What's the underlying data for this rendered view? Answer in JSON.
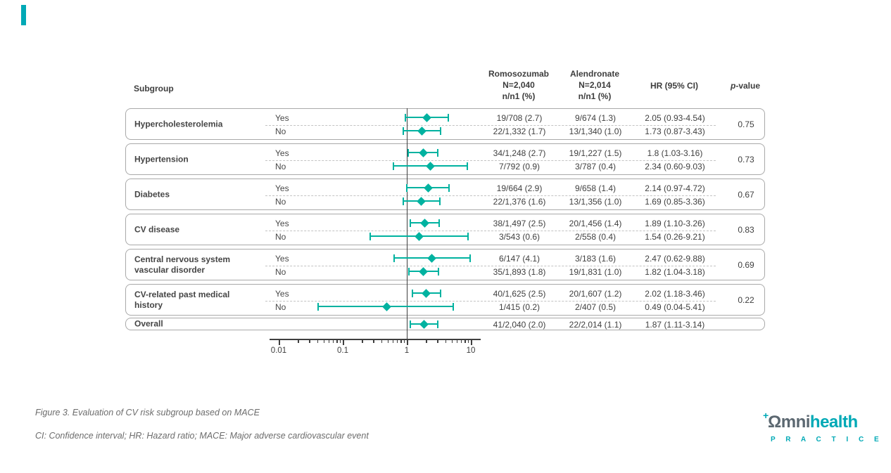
{
  "page": {
    "background": "#ffffff",
    "corner_tab_color": "#00a9b6"
  },
  "table_header": {
    "subgroup": "Subgroup",
    "romosozumab_lines": [
      "Romosozumab",
      "N=2,040",
      "n/n1 (%)"
    ],
    "alendronate_lines": [
      "Alendronate",
      "N=2,014",
      "n/n1 (%)"
    ],
    "hr": "HR (95% CI)",
    "p_italic": "p",
    "p_rest": "-value"
  },
  "chart_data": {
    "type": "scatter",
    "variant": "forest-plot",
    "x_scale": "log10",
    "x_ticks": [
      0.01,
      0.1,
      1,
      10
    ],
    "x_tick_labels": [
      "0.01",
      "0.1",
      "1",
      "10"
    ],
    "reference_line_x": 1,
    "marker_color": "#00b2a0",
    "groups": [
      {
        "subgroup_lines": [
          "Hypercholesterolemia"
        ],
        "p_value": "0.75",
        "rows": [
          {
            "level": "Yes",
            "romosozumab": "19/708 (2.7)",
            "alendronate": "9/674 (1.3)",
            "hr_text": "2.05 (0.93-4.54)",
            "hr": 2.05,
            "ci_low": 0.93,
            "ci_high": 4.54
          },
          {
            "level": "No",
            "romosozumab": "22/1,332 (1.7)",
            "alendronate": "13/1,340 (1.0)",
            "hr_text": "1.73 (0.87-3.43)",
            "hr": 1.73,
            "ci_low": 0.87,
            "ci_high": 3.43
          }
        ]
      },
      {
        "subgroup_lines": [
          "Hypertension"
        ],
        "p_value": "0.73",
        "rows": [
          {
            "level": "Yes",
            "romosozumab": "34/1,248 (2.7)",
            "alendronate": "19/1,227 (1.5)",
            "hr_text": "1.8 (1.03-3.16)",
            "hr": 1.8,
            "ci_low": 1.03,
            "ci_high": 3.16
          },
          {
            "level": "No",
            "romosozumab": "7/792 (0.9)",
            "alendronate": "3/787 (0.4)",
            "hr_text": "2.34 (0.60-9.03)",
            "hr": 2.34,
            "ci_low": 0.6,
            "ci_high": 9.03
          }
        ]
      },
      {
        "subgroup_lines": [
          "Diabetes"
        ],
        "p_value": "0.67",
        "rows": [
          {
            "level": "Yes",
            "romosozumab": "19/664 (2.9)",
            "alendronate": "9/658 (1.4)",
            "hr_text": "2.14 (0.97-4.72)",
            "hr": 2.14,
            "ci_low": 0.97,
            "ci_high": 4.72
          },
          {
            "level": "No",
            "romosozumab": "22/1,376 (1.6)",
            "alendronate": "13/1,356 (1.0)",
            "hr_text": "1.69 (0.85-3.36)",
            "hr": 1.69,
            "ci_low": 0.85,
            "ci_high": 3.36
          }
        ]
      },
      {
        "subgroup_lines": [
          "CV disease"
        ],
        "p_value": "0.83",
        "rows": [
          {
            "level": "Yes",
            "romosozumab": "38/1,497 (2.5)",
            "alendronate": "20/1,456 (1.4)",
            "hr_text": "1.89 (1.10-3.26)",
            "hr": 1.89,
            "ci_low": 1.1,
            "ci_high": 3.26
          },
          {
            "level": "No",
            "romosozumab": "3/543 (0.6)",
            "alendronate": "2/558 (0.4)",
            "hr_text": "1.54 (0.26-9.21)",
            "hr": 1.54,
            "ci_low": 0.26,
            "ci_high": 9.21
          }
        ]
      },
      {
        "subgroup_lines": [
          "Central nervous system",
          "vascular disorder"
        ],
        "p_value": "0.69",
        "rows": [
          {
            "level": "Yes",
            "romosozumab": "6/147 (4.1)",
            "alendronate": "3/183 (1.6)",
            "hr_text": "2.47 (0.62-9.88)",
            "hr": 2.47,
            "ci_low": 0.62,
            "ci_high": 9.88
          },
          {
            "level": "No",
            "romosozumab": "35/1,893 (1.8)",
            "alendronate": "19/1,831 (1.0)",
            "hr_text": "1.82 (1.04-3.18)",
            "hr": 1.82,
            "ci_low": 1.04,
            "ci_high": 3.18
          }
        ]
      },
      {
        "subgroup_lines": [
          "CV-related past medical",
          "history"
        ],
        "p_value": "0.22",
        "rows": [
          {
            "level": "Yes",
            "romosozumab": "40/1,625 (2.5)",
            "alendronate": "20/1,607 (1.2)",
            "hr_text": "2.02 (1.18-3.46)",
            "hr": 2.02,
            "ci_low": 1.18,
            "ci_high": 3.46
          },
          {
            "level": "No",
            "romosozumab": "1/415 (0.2)",
            "alendronate": "2/407 (0.5)",
            "hr_text": "0.49 (0.04-5.41)",
            "hr": 0.49,
            "ci_low": 0.04,
            "ci_high": 5.41
          }
        ]
      }
    ],
    "overall": {
      "label": "Overall",
      "romosozumab": "41/2,040 (2.0)",
      "alendronate": "22/2,014 (1.1)",
      "hr_text": "1.87 (1.11-3.14)",
      "hr": 1.87,
      "ci_low": 1.11,
      "ci_high": 3.14
    }
  },
  "caption": {
    "line1": "Figure 3. Evaluation of CV risk subgroup based on MACE",
    "line2": "CI: Confidence interval; HR: Hazard ratio; MACE: Major adverse cardiovascular event"
  },
  "logo": {
    "plus": "+",
    "part1": "Ωmni",
    "part2": "health",
    "subtext": "P R A C T I C E",
    "slate_color": "#5b6770",
    "teal_color": "#00a9b6"
  }
}
